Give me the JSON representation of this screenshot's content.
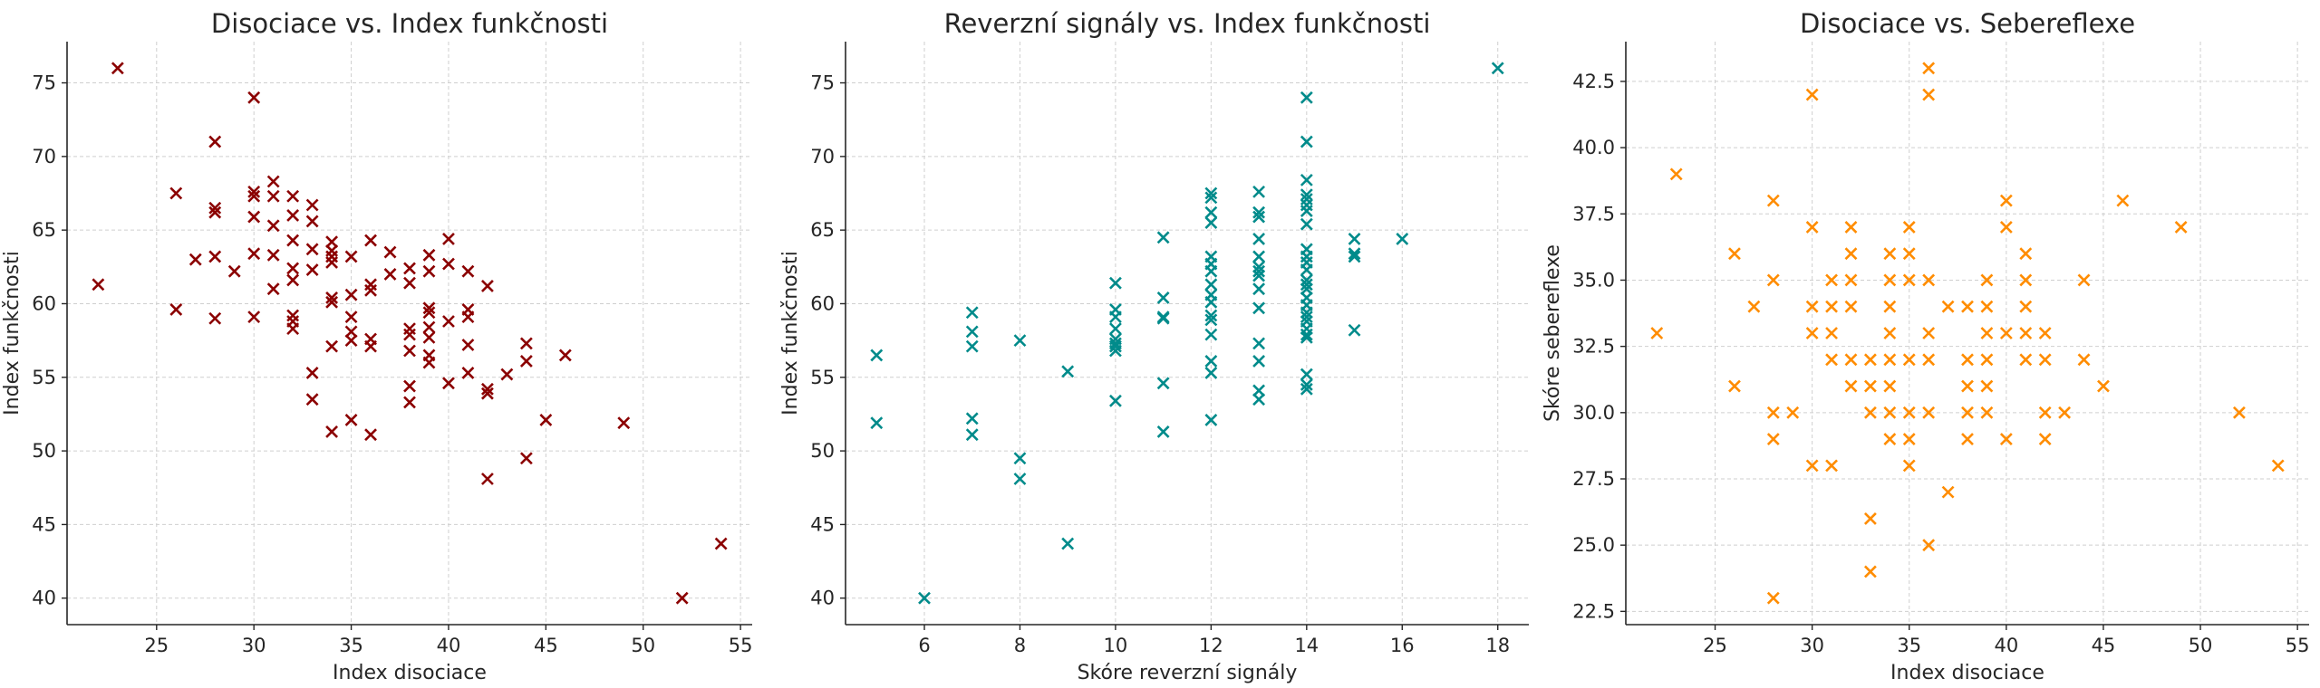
{
  "chart_data": [
    {
      "type": "scatter",
      "title": "Disociace vs. Index funkčnosti",
      "xlabel": "Index disociace",
      "ylabel": "Index funkčnosti",
      "xlim": [
        20.4,
        55.6
      ],
      "ylim": [
        38.2,
        77.8
      ],
      "xticks": [
        25,
        30,
        35,
        40,
        45,
        50,
        55
      ],
      "yticks": [
        40,
        45,
        50,
        55,
        60,
        65,
        70,
        75
      ],
      "grid": true,
      "marker": "x",
      "color": "#8b0000",
      "points": [
        [
          22,
          61.3
        ],
        [
          23,
          76
        ],
        [
          26,
          67.5
        ],
        [
          26,
          59.6
        ],
        [
          27,
          63
        ],
        [
          28,
          71
        ],
        [
          28,
          66.5
        ],
        [
          28,
          66.2
        ],
        [
          28,
          63.2
        ],
        [
          28,
          59
        ],
        [
          29,
          62.2
        ],
        [
          30,
          74
        ],
        [
          30,
          67.6
        ],
        [
          30,
          67.3
        ],
        [
          30,
          65.9
        ],
        [
          30,
          63.4
        ],
        [
          30,
          59.1
        ],
        [
          31,
          68.3
        ],
        [
          31,
          67.3
        ],
        [
          31,
          65.3
        ],
        [
          31,
          63.3
        ],
        [
          31,
          61
        ],
        [
          32,
          67.3
        ],
        [
          32,
          66
        ],
        [
          32,
          64.3
        ],
        [
          32,
          62.4
        ],
        [
          32,
          61.6
        ],
        [
          32,
          59.2
        ],
        [
          32,
          58.8
        ],
        [
          32,
          58.3
        ],
        [
          33,
          66.7
        ],
        [
          33,
          65.6
        ],
        [
          33,
          63.7
        ],
        [
          33,
          62.3
        ],
        [
          33,
          55.3
        ],
        [
          33,
          53.5
        ],
        [
          34,
          64.2
        ],
        [
          34,
          63.6
        ],
        [
          34,
          63.2
        ],
        [
          34,
          62.8
        ],
        [
          34,
          60.4
        ],
        [
          34,
          60.1
        ],
        [
          34,
          57.1
        ],
        [
          34,
          51.3
        ],
        [
          35,
          63.2
        ],
        [
          35,
          60.6
        ],
        [
          35,
          59.1
        ],
        [
          35,
          58.1
        ],
        [
          35,
          57.5
        ],
        [
          35,
          52.1
        ],
        [
          36,
          64.3
        ],
        [
          36,
          61.3
        ],
        [
          36,
          60.9
        ],
        [
          36,
          57.6
        ],
        [
          36,
          57.1
        ],
        [
          36,
          51.1
        ],
        [
          37,
          63.5
        ],
        [
          37,
          62
        ],
        [
          38,
          62.4
        ],
        [
          38,
          61.4
        ],
        [
          38,
          58.3
        ],
        [
          38,
          57.9
        ],
        [
          38,
          56.8
        ],
        [
          38,
          54.4
        ],
        [
          38,
          53.3
        ],
        [
          39,
          63.3
        ],
        [
          39,
          62.2
        ],
        [
          39,
          59.7
        ],
        [
          39,
          59.4
        ],
        [
          39,
          58.4
        ],
        [
          39,
          57.7
        ],
        [
          39,
          56.5
        ],
        [
          39,
          56
        ],
        [
          40,
          64.4
        ],
        [
          40,
          62.7
        ],
        [
          40,
          58.8
        ],
        [
          40,
          54.6
        ],
        [
          41,
          62.2
        ],
        [
          41,
          59.6
        ],
        [
          41,
          59.1
        ],
        [
          41,
          57.2
        ],
        [
          41,
          55.3
        ],
        [
          42,
          61.2
        ],
        [
          42,
          54.2
        ],
        [
          42,
          53.9
        ],
        [
          42,
          48.1
        ],
        [
          43,
          55.2
        ],
        [
          44,
          57.3
        ],
        [
          44,
          56.1
        ],
        [
          44,
          49.5
        ],
        [
          45,
          52.1
        ],
        [
          46,
          56.5
        ],
        [
          49,
          51.9
        ],
        [
          52,
          40
        ],
        [
          54,
          43.7
        ]
      ]
    },
    {
      "type": "scatter",
      "title": "Reverzní signály vs. Index funkčnosti",
      "xlabel": "Skóre reverzní signály",
      "ylabel": "Index funkčnosti",
      "xlim": [
        4.35,
        18.65
      ],
      "ylim": [
        38.2,
        77.8
      ],
      "xticks": [
        6,
        8,
        10,
        12,
        14,
        16,
        18
      ],
      "yticks": [
        40,
        45,
        50,
        55,
        60,
        65,
        70,
        75
      ],
      "grid": true,
      "marker": "x",
      "color": "#008b8b",
      "points": [
        [
          5,
          56.5
        ],
        [
          5,
          51.9
        ],
        [
          6,
          40
        ],
        [
          7,
          59.4
        ],
        [
          7,
          58.1
        ],
        [
          7,
          57.1
        ],
        [
          7,
          52.2
        ],
        [
          7,
          51.1
        ],
        [
          8,
          57.5
        ],
        [
          8,
          49.5
        ],
        [
          8,
          48.1
        ],
        [
          9,
          55.4
        ],
        [
          9,
          43.7
        ],
        [
          10,
          61.4
        ],
        [
          10,
          59.6
        ],
        [
          10,
          59.1
        ],
        [
          10,
          58.3
        ],
        [
          10,
          57.6
        ],
        [
          10,
          57.3
        ],
        [
          10,
          57.1
        ],
        [
          10,
          56.8
        ],
        [
          10,
          53.4
        ],
        [
          11,
          64.5
        ],
        [
          11,
          60.4
        ],
        [
          11,
          59.1
        ],
        [
          11,
          59
        ],
        [
          11,
          54.6
        ],
        [
          11,
          51.3
        ],
        [
          12,
          67.5
        ],
        [
          12,
          67.2
        ],
        [
          12,
          66.2
        ],
        [
          12,
          65.5
        ],
        [
          12,
          63.2
        ],
        [
          12,
          62.7
        ],
        [
          12,
          62.2
        ],
        [
          12,
          61.3
        ],
        [
          12,
          60.6
        ],
        [
          12,
          60.1
        ],
        [
          12,
          59.2
        ],
        [
          12,
          58.9
        ],
        [
          12,
          57.9
        ],
        [
          12,
          56.1
        ],
        [
          12,
          55.3
        ],
        [
          12,
          52.1
        ],
        [
          13,
          67.6
        ],
        [
          13,
          66.2
        ],
        [
          13,
          65.9
        ],
        [
          13,
          64.4
        ],
        [
          13,
          63.2
        ],
        [
          13,
          62.5
        ],
        [
          13,
          62.2
        ],
        [
          13,
          61.9
        ],
        [
          13,
          61
        ],
        [
          13,
          59.7
        ],
        [
          13,
          57.3
        ],
        [
          13,
          56.1
        ],
        [
          13,
          54.1
        ],
        [
          13,
          53.5
        ],
        [
          14,
          74
        ],
        [
          14,
          71
        ],
        [
          14,
          68.4
        ],
        [
          14,
          67.4
        ],
        [
          14,
          67.1
        ],
        [
          14,
          66.7
        ],
        [
          14,
          66.3
        ],
        [
          14,
          65.4
        ],
        [
          14,
          63.7
        ],
        [
          14,
          63.2
        ],
        [
          14,
          62.8
        ],
        [
          14,
          62.3
        ],
        [
          14,
          61.6
        ],
        [
          14,
          61.3
        ],
        [
          14,
          61
        ],
        [
          14,
          60.4
        ],
        [
          14,
          59.9
        ],
        [
          14,
          59.4
        ],
        [
          14,
          59.1
        ],
        [
          14,
          58.8
        ],
        [
          14,
          58.3
        ],
        [
          14,
          57.9
        ],
        [
          14,
          57.7
        ],
        [
          14,
          55.2
        ],
        [
          14,
          54.5
        ],
        [
          14,
          54.2
        ],
        [
          15,
          64.4
        ],
        [
          15,
          63.4
        ],
        [
          15,
          63.2
        ],
        [
          15,
          58.2
        ],
        [
          16,
          64.4
        ],
        [
          18,
          76
        ]
      ]
    },
    {
      "type": "scatter",
      "title": "Disociace vs. Sebereflexe",
      "xlabel": "Index disociace",
      "ylabel": "Skóre sebereflexe",
      "xlim": [
        20.4,
        55.6
      ],
      "ylim": [
        22,
        44
      ],
      "xticks": [
        25,
        30,
        35,
        40,
        45,
        50,
        55
      ],
      "yticks": [
        22.5,
        25.0,
        27.5,
        30.0,
        32.5,
        35.0,
        37.5,
        40.0,
        42.5
      ],
      "grid": true,
      "marker": "x",
      "color": "#ff8c00",
      "points": [
        [
          22,
          33
        ],
        [
          23,
          39
        ],
        [
          26,
          36
        ],
        [
          26,
          31
        ],
        [
          27,
          34
        ],
        [
          28,
          38
        ],
        [
          28,
          35
        ],
        [
          28,
          30
        ],
        [
          28,
          29
        ],
        [
          28,
          23
        ],
        [
          29,
          30
        ],
        [
          30,
          42
        ],
        [
          30,
          37
        ],
        [
          30,
          34
        ],
        [
          30,
          33
        ],
        [
          30,
          28
        ],
        [
          31,
          35
        ],
        [
          31,
          34
        ],
        [
          31,
          33
        ],
        [
          31,
          32
        ],
        [
          31,
          28
        ],
        [
          32,
          37
        ],
        [
          32,
          36
        ],
        [
          32,
          35
        ],
        [
          32,
          34
        ],
        [
          32,
          32
        ],
        [
          32,
          31
        ],
        [
          33,
          32
        ],
        [
          33,
          31
        ],
        [
          33,
          30
        ],
        [
          33,
          26
        ],
        [
          33,
          24
        ],
        [
          34,
          36
        ],
        [
          34,
          35
        ],
        [
          34,
          34
        ],
        [
          34,
          33
        ],
        [
          34,
          32
        ],
        [
          34,
          31
        ],
        [
          34,
          30
        ],
        [
          34,
          29
        ],
        [
          35,
          37
        ],
        [
          35,
          36
        ],
        [
          35,
          35
        ],
        [
          35,
          32
        ],
        [
          35,
          30
        ],
        [
          35,
          29
        ],
        [
          35,
          28
        ],
        [
          36,
          43
        ],
        [
          36,
          42
        ],
        [
          36,
          35
        ],
        [
          36,
          33
        ],
        [
          36,
          32
        ],
        [
          36,
          30
        ],
        [
          36,
          25
        ],
        [
          37,
          34
        ],
        [
          37,
          27
        ],
        [
          38,
          34
        ],
        [
          38,
          32
        ],
        [
          38,
          31
        ],
        [
          38,
          30
        ],
        [
          38,
          29
        ],
        [
          39,
          35
        ],
        [
          39,
          34
        ],
        [
          39,
          33
        ],
        [
          39,
          32
        ],
        [
          39,
          31
        ],
        [
          39,
          30
        ],
        [
          40,
          38
        ],
        [
          40,
          37
        ],
        [
          40,
          33
        ],
        [
          40,
          29
        ],
        [
          41,
          36
        ],
        [
          41,
          35
        ],
        [
          41,
          34
        ],
        [
          41,
          33
        ],
        [
          41,
          32
        ],
        [
          42,
          33
        ],
        [
          42,
          32
        ],
        [
          42,
          30
        ],
        [
          42,
          29
        ],
        [
          43,
          30
        ],
        [
          44,
          35
        ],
        [
          44,
          32
        ],
        [
          45,
          31
        ],
        [
          46,
          38
        ],
        [
          49,
          37
        ],
        [
          52,
          30
        ],
        [
          54,
          28
        ]
      ]
    }
  ]
}
